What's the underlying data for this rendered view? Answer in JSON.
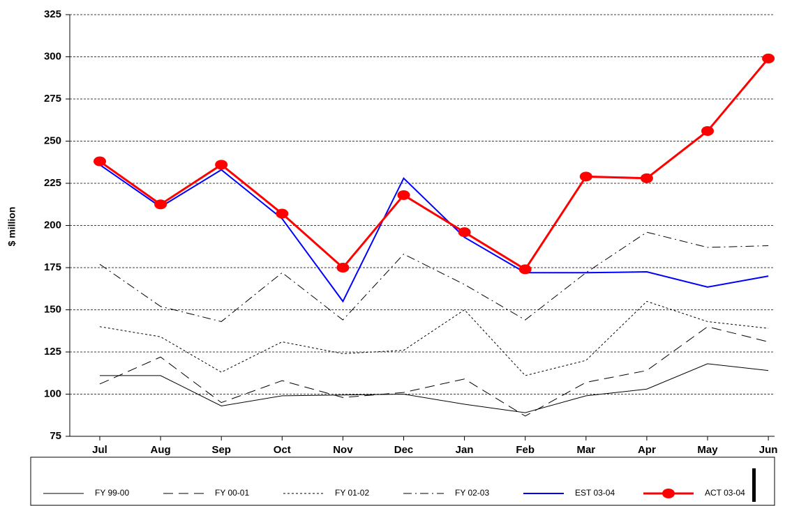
{
  "chart_data": {
    "type": "line",
    "y_label": "$ million",
    "categories": [
      "Jul",
      "Aug",
      "Sep",
      "Oct",
      "Nov",
      "Dec",
      "Jan",
      "Feb",
      "Mar",
      "Apr",
      "May",
      "Jun"
    ],
    "ylim": [
      75,
      325
    ],
    "yticks": [
      75,
      100,
      125,
      150,
      175,
      200,
      225,
      250,
      275,
      300,
      325
    ],
    "grid": true,
    "legend": "bottom",
    "series": [
      {
        "name": "FY 99-00",
        "color": "#000000",
        "dash": "solid",
        "values": [
          111,
          111,
          93,
          99,
          99.5,
          100,
          94,
          89,
          99,
          103,
          118,
          114
        ]
      },
      {
        "name": "FY 00-01",
        "color": "#000000",
        "dash": "dashed",
        "values": [
          106,
          122,
          95,
          108,
          98,
          101,
          109,
          87,
          107,
          114,
          140,
          131
        ]
      },
      {
        "name": "FY 01-02",
        "color": "#000000",
        "dash": "dotted",
        "values": [
          140,
          134,
          113,
          131,
          124,
          126,
          150,
          111,
          120,
          155,
          143,
          139
        ]
      },
      {
        "name": "FY 02-03",
        "color": "#000000",
        "dash": "dash-dot",
        "values": [
          177,
          152,
          143,
          172,
          144,
          183,
          165,
          144,
          172,
          196,
          187,
          188
        ]
      },
      {
        "name": "EST 03-04",
        "color": "#0000ff",
        "dash": "solid",
        "values": [
          236,
          211,
          233,
          204,
          155,
          228,
          193,
          172,
          172,
          172.5,
          163.5,
          170
        ]
      },
      {
        "name": "ACT 03-04",
        "color": "#ff0000",
        "dash": "solid",
        "marker": "circle",
        "values": [
          238,
          212.5,
          236,
          207,
          175,
          218,
          196,
          174,
          229,
          228,
          256,
          299
        ]
      }
    ]
  }
}
